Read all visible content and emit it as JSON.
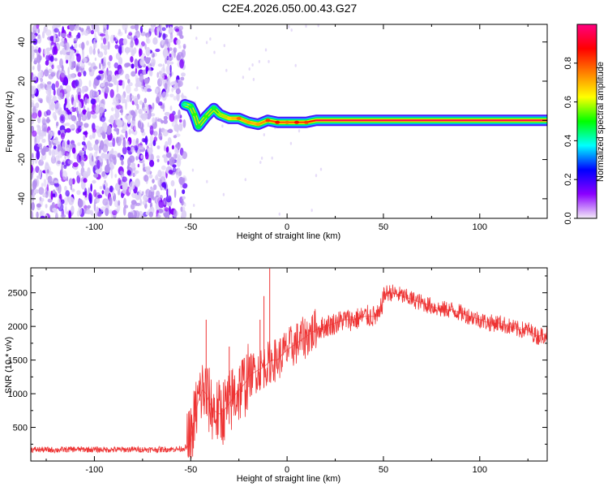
{
  "title": "C2E4.2026.050.00.43.G27",
  "colorbar": {
    "label": "Normalized spectral amplitude",
    "ticks": [
      "0.0",
      "0.2",
      "0.4",
      "0.6",
      "0.8"
    ],
    "tick_values": [
      0,
      0.2,
      0.4,
      0.6,
      0.8
    ],
    "range": [
      0,
      1
    ],
    "colormap": "rainbow",
    "colors": [
      "#f4ecf8",
      "#8b00ff",
      "#0000ff",
      "#00ffff",
      "#00ff00",
      "#ffff00",
      "#ff8000",
      "#ff0000",
      "#ff0080"
    ]
  },
  "chart_data": [
    {
      "type": "heatmap",
      "xlabel": "Height of straight line (km)",
      "ylabel": "Frequency (Hz)",
      "xlim": [
        -133,
        135
      ],
      "ylim": [
        -50,
        49
      ],
      "xticks": [
        -100,
        -50,
        0,
        50,
        100
      ],
      "xtick_labels": [
        "-100",
        "-50",
        "0",
        "50",
        "100"
      ],
      "yticks": [
        -40,
        -20,
        0,
        20,
        40
      ],
      "ytick_labels": [
        "-40",
        "-20",
        "0",
        "20",
        "40"
      ],
      "noise_region": {
        "x_range": [
          -133,
          -53
        ],
        "frequency_range": [
          -50,
          49
        ],
        "amplitude": "low (0.0-0.2)"
      },
      "signal_track": [
        {
          "x": -53,
          "frequency": 8,
          "amplitude": 0.3
        },
        {
          "x": -50,
          "frequency": 7,
          "amplitude": 0.35
        },
        {
          "x": -48,
          "frequency": 3,
          "amplitude": 0.4
        },
        {
          "x": -46,
          "frequency": -3,
          "amplitude": 0.35
        },
        {
          "x": -42,
          "frequency": 2,
          "amplitude": 0.4
        },
        {
          "x": -38,
          "frequency": 6,
          "amplitude": 0.35
        },
        {
          "x": -35,
          "frequency": 3,
          "amplitude": 0.45
        },
        {
          "x": -30,
          "frequency": 1,
          "amplitude": 0.55
        },
        {
          "x": -25,
          "frequency": 1,
          "amplitude": 0.65
        },
        {
          "x": -20,
          "frequency": -1,
          "amplitude": 0.6
        },
        {
          "x": -15,
          "frequency": -2,
          "amplitude": 0.6
        },
        {
          "x": -10,
          "frequency": 0,
          "amplitude": 0.7
        },
        {
          "x": -5,
          "frequency": -1,
          "amplitude": 0.75
        },
        {
          "x": 0,
          "frequency": -1,
          "amplitude": 0.65
        },
        {
          "x": 5,
          "frequency": -1,
          "amplitude": 0.75
        },
        {
          "x": 10,
          "frequency": -1,
          "amplitude": 0.7
        },
        {
          "x": 15,
          "frequency": 0,
          "amplitude": 0.85
        },
        {
          "x": 135,
          "frequency": 0,
          "amplitude": 0.9
        }
      ]
    },
    {
      "type": "line",
      "xlabel": "Height of straight line (km)",
      "ylabel": "SNR (10 * v/v)",
      "xlim": [
        -133,
        135
      ],
      "ylim": [
        0,
        2870
      ],
      "xticks": [
        -100,
        -50,
        0,
        50,
        100
      ],
      "xtick_labels": [
        "-100",
        "-50",
        "0",
        "50",
        "100"
      ],
      "yticks": [
        500,
        1000,
        1500,
        2000,
        2500
      ],
      "ytick_labels": [
        "500",
        "1000",
        "1500",
        "2000",
        "2500"
      ],
      "series": [
        {
          "color": "#ee3333",
          "x": [
            -133,
            -120,
            -110,
            -100,
            -90,
            -80,
            -70,
            -60,
            -55,
            -52,
            -50,
            -48,
            -46,
            -44,
            -42,
            -40,
            -38,
            -35,
            -32,
            -30,
            -28,
            -25,
            -22,
            -20,
            -18,
            -15,
            -12,
            -10,
            -8,
            -5,
            -2,
            0,
            5,
            10,
            15,
            20,
            25,
            30,
            35,
            40,
            45,
            48,
            50,
            52,
            55,
            60,
            65,
            70,
            75,
            80,
            85,
            90,
            95,
            100,
            105,
            110,
            115,
            120,
            125,
            130,
            135
          ],
          "y": [
            170,
            165,
            175,
            170,
            168,
            172,
            170,
            175,
            180,
            200,
            300,
            650,
            900,
            1050,
            1000,
            850,
            750,
            700,
            780,
            850,
            950,
            1050,
            1150,
            1250,
            1300,
            1350,
            1400,
            1450,
            1500,
            1500,
            1600,
            1650,
            1750,
            1850,
            1950,
            2000,
            2050,
            2100,
            2100,
            2150,
            2150,
            2150,
            2450,
            2500,
            2500,
            2450,
            2400,
            2350,
            2300,
            2250,
            2250,
            2200,
            2150,
            2100,
            2050,
            2050,
            2000,
            1950,
            1950,
            1850,
            1900
          ]
        }
      ],
      "spikes": [
        {
          "x": -42,
          "y": 2100
        },
        {
          "x": -30,
          "y": 1700
        },
        {
          "x": -14,
          "y": 2100
        },
        {
          "x": -12,
          "y": 2450
        },
        {
          "x": -9,
          "y": 2860
        }
      ]
    }
  ]
}
